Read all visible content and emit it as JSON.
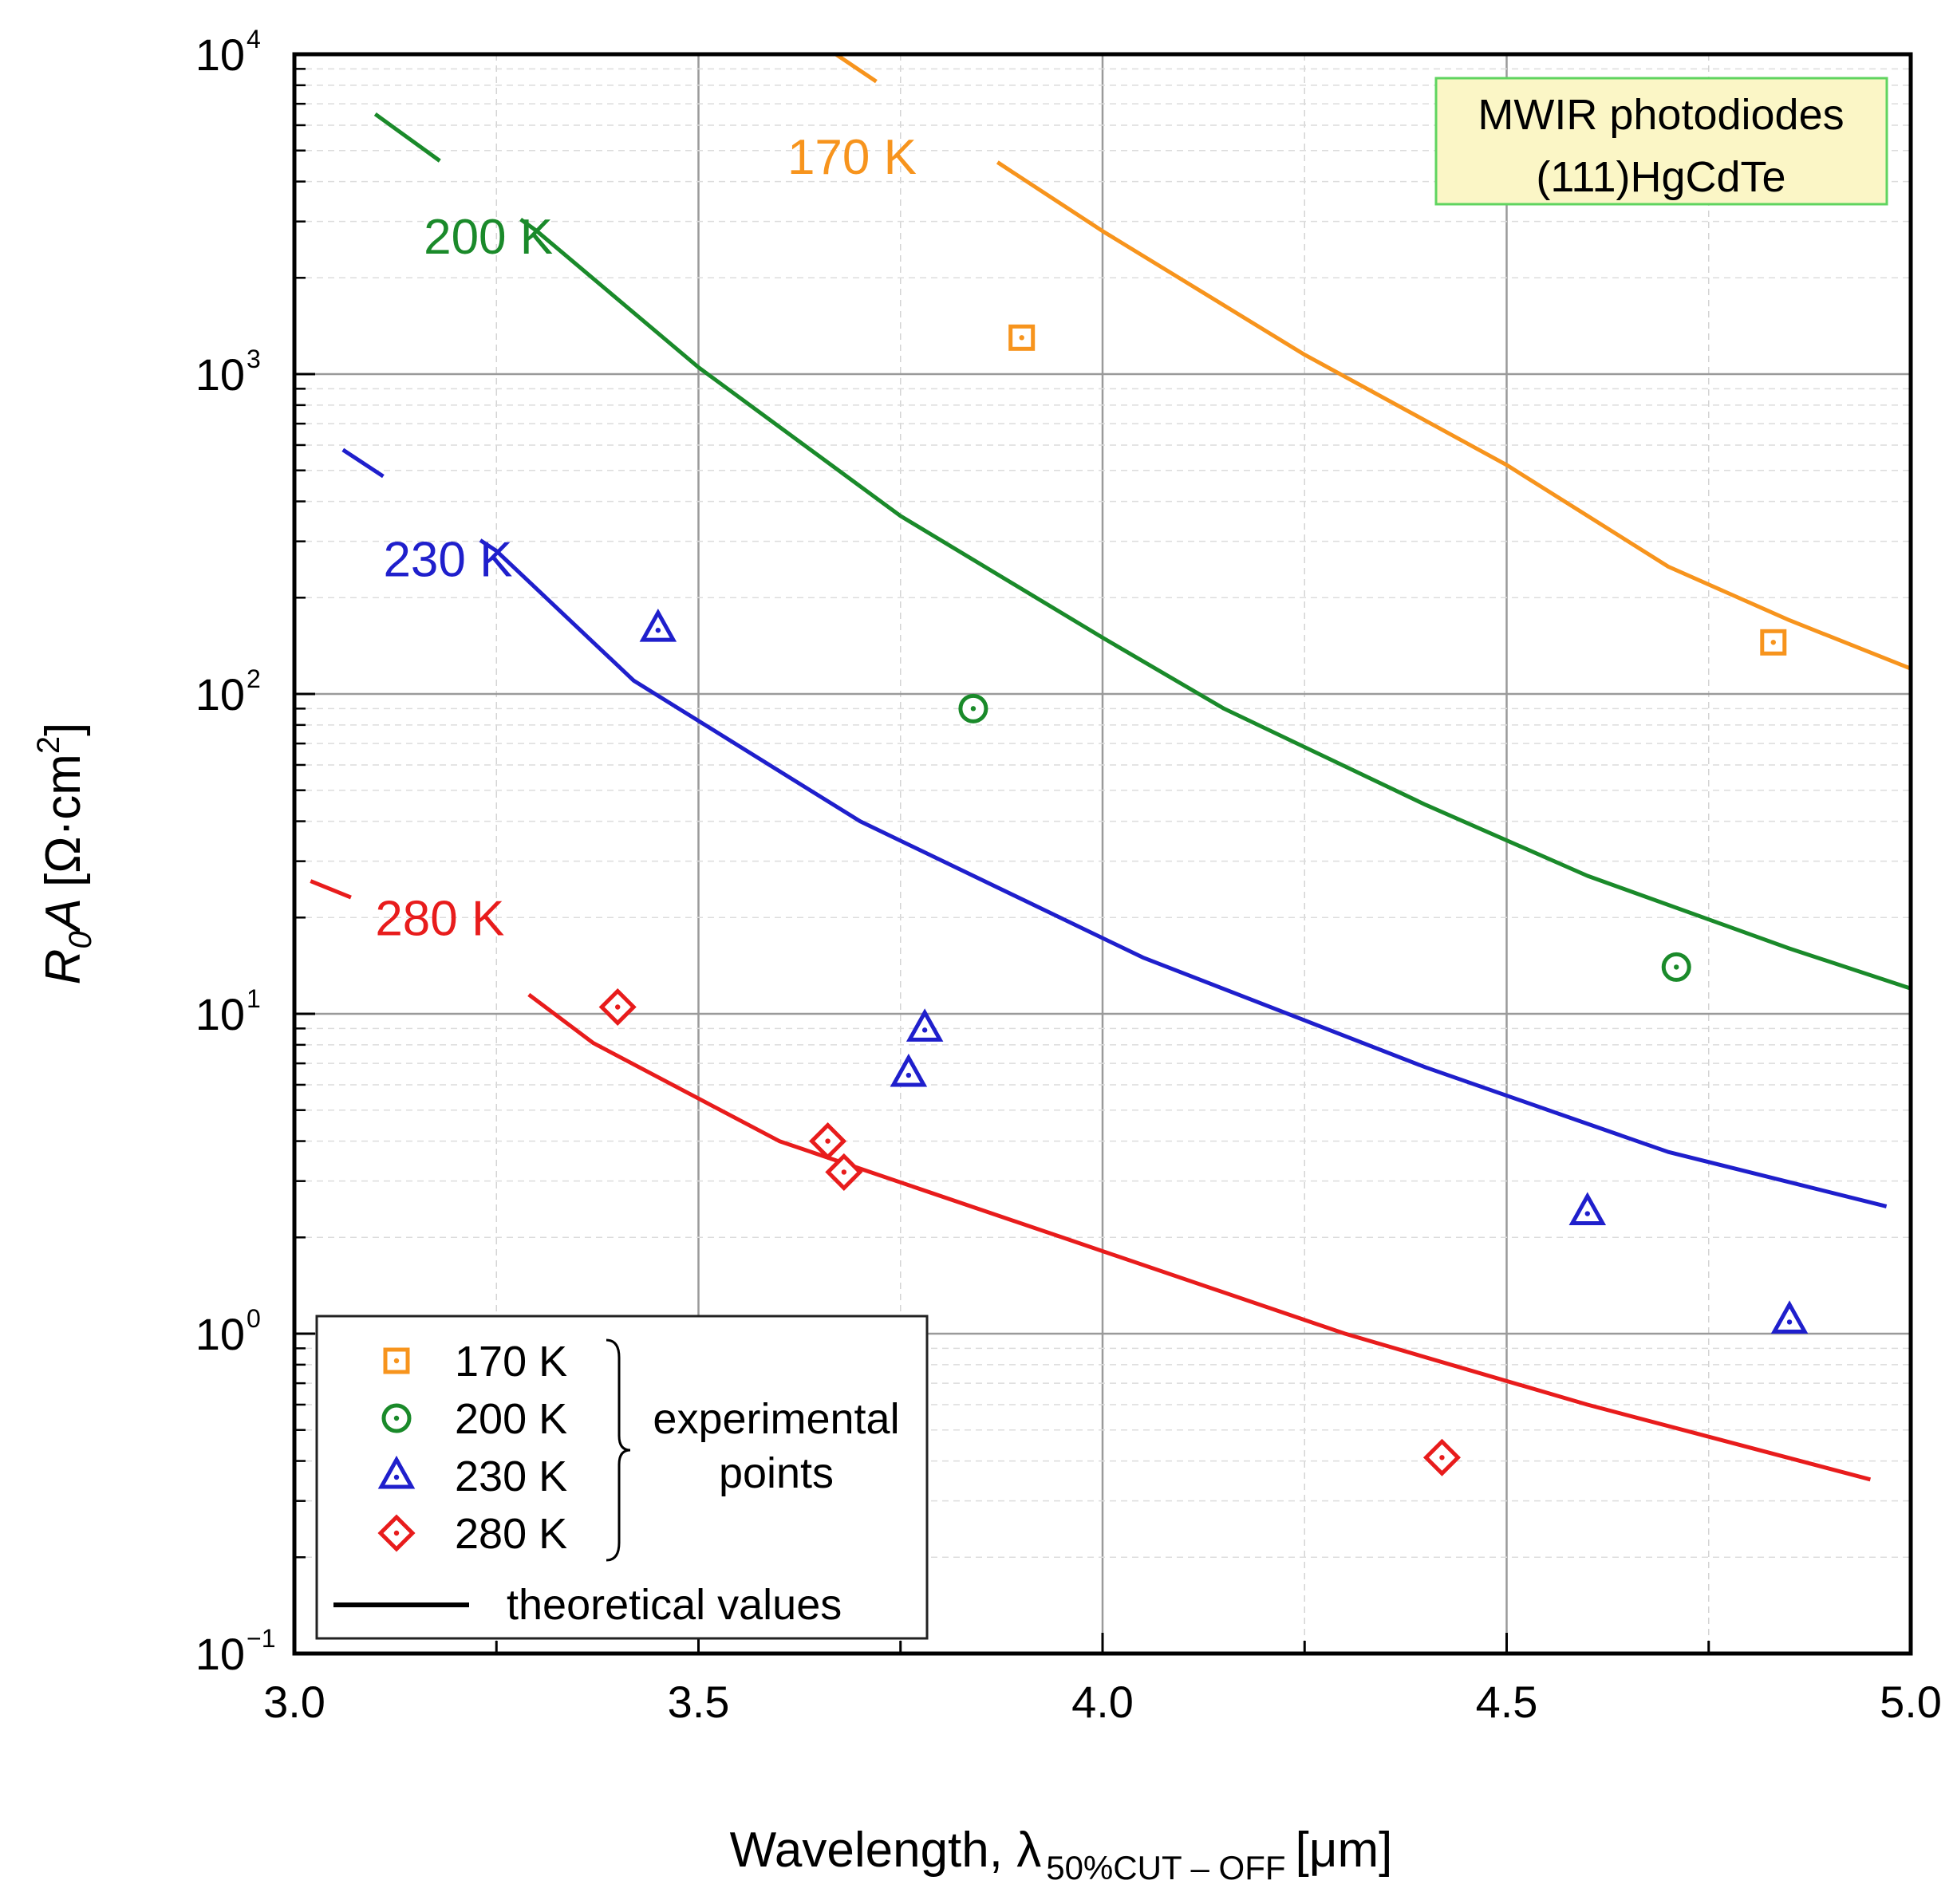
{
  "chart_data": {
    "type": "line+scatter",
    "xlabel": "Wavelength, λ",
    "xlabel_sub": "50%CUT – OFF",
    "xlabel_unit": "[μm]",
    "ylabel_R": "R",
    "ylabel_sub": "0",
    "ylabel_A": "A",
    "ylabel_unit": "[Ω·cm",
    "ylabel_exp": "2",
    "ylabel_close": "]",
    "xlim": [
      3.0,
      5.0
    ],
    "ylim": [
      0.1,
      10000
    ],
    "yscale": "log",
    "grid": true,
    "x_ticks": [
      {
        "value": 3.0,
        "label": "3.0"
      },
      {
        "value": 3.5,
        "label": "3.5"
      },
      {
        "value": 4.0,
        "label": "4.0"
      },
      {
        "value": 4.5,
        "label": "4.5"
      },
      {
        "value": 5.0,
        "label": "5.0"
      }
    ],
    "y_ticks": [
      {
        "value": 0.1,
        "base": "10",
        "exp": "−1"
      },
      {
        "value": 1,
        "base": "10",
        "exp": "0"
      },
      {
        "value": 10,
        "base": "10",
        "exp": "1"
      },
      {
        "value": 100,
        "base": "10",
        "exp": "2"
      },
      {
        "value": 1000,
        "base": "10",
        "exp": "3"
      },
      {
        "value": 10000,
        "base": "10",
        "exp": "4"
      }
    ],
    "info_box": {
      "line1": "MWIR photodiodes",
      "line2": "(111)HgCdTe"
    },
    "series": [
      {
        "name": "170 K",
        "color": "#f7941d",
        "marker": "square",
        "label": "170 K",
        "label_at": [
          3.69,
          4800
        ],
        "gap": [
          3.72,
          3.87
        ],
        "theory": [
          [
            3.67,
            10000
          ],
          [
            3.8,
            6000
          ],
          [
            4.0,
            2800
          ],
          [
            4.25,
            1150
          ],
          [
            4.5,
            520
          ],
          [
            4.7,
            250
          ],
          [
            4.85,
            170
          ],
          [
            5.0,
            120
          ]
        ],
        "points": [
          [
            3.9,
            1300
          ],
          [
            4.83,
            145
          ]
        ]
      },
      {
        "name": "200 K",
        "color": "#1a8a2a",
        "marker": "circle",
        "label": "200 K",
        "label_at": [
          3.24,
          2700
        ],
        "gap": [
          3.18,
          3.28
        ],
        "theory": [
          [
            3.1,
            6500
          ],
          [
            3.3,
            2800
          ],
          [
            3.5,
            1050
          ],
          [
            3.75,
            360
          ],
          [
            4.0,
            150
          ],
          [
            4.15,
            90
          ],
          [
            4.4,
            45
          ],
          [
            4.6,
            27
          ],
          [
            4.85,
            16
          ],
          [
            5.0,
            12
          ]
        ],
        "points": [
          [
            3.84,
            90
          ],
          [
            4.71,
            14
          ]
        ]
      },
      {
        "name": "230 K",
        "color": "#1f1fcc",
        "marker": "triangle",
        "label": "230 K",
        "label_at": [
          3.19,
          265
        ],
        "gap": [
          3.11,
          3.23
        ],
        "theory": [
          [
            3.06,
            580
          ],
          [
            3.25,
            280
          ],
          [
            3.42,
            110
          ],
          [
            3.7,
            40
          ],
          [
            4.05,
            15
          ],
          [
            4.4,
            6.8
          ],
          [
            4.7,
            3.7
          ],
          [
            4.97,
            2.5
          ]
        ],
        "points": [
          [
            3.45,
            160
          ],
          [
            3.78,
            9.0
          ],
          [
            3.76,
            6.5
          ],
          [
            4.6,
            2.4
          ],
          [
            4.85,
            1.1
          ]
        ]
      },
      {
        "name": "280 K",
        "color": "#e81c1c",
        "marker": "diamond",
        "label": "280 K",
        "label_at": [
          3.18,
          20
        ],
        "gap": [
          3.07,
          3.29
        ],
        "theory": [
          [
            3.02,
            26
          ],
          [
            3.2,
            17
          ],
          [
            3.37,
            8.1
          ],
          [
            3.6,
            4.0
          ],
          [
            3.95,
            2.0
          ],
          [
            4.3,
            1.0
          ],
          [
            4.6,
            0.6
          ],
          [
            4.95,
            0.35
          ]
        ],
        "points": [
          [
            3.4,
            10.5
          ],
          [
            3.66,
            4.0
          ],
          [
            3.68,
            3.2
          ],
          [
            4.42,
            0.41
          ]
        ]
      }
    ],
    "legend": {
      "position": "bottom-left",
      "experimental_label_1": "experimental",
      "experimental_label_2": "points",
      "theory_label": "theoretical values"
    }
  }
}
